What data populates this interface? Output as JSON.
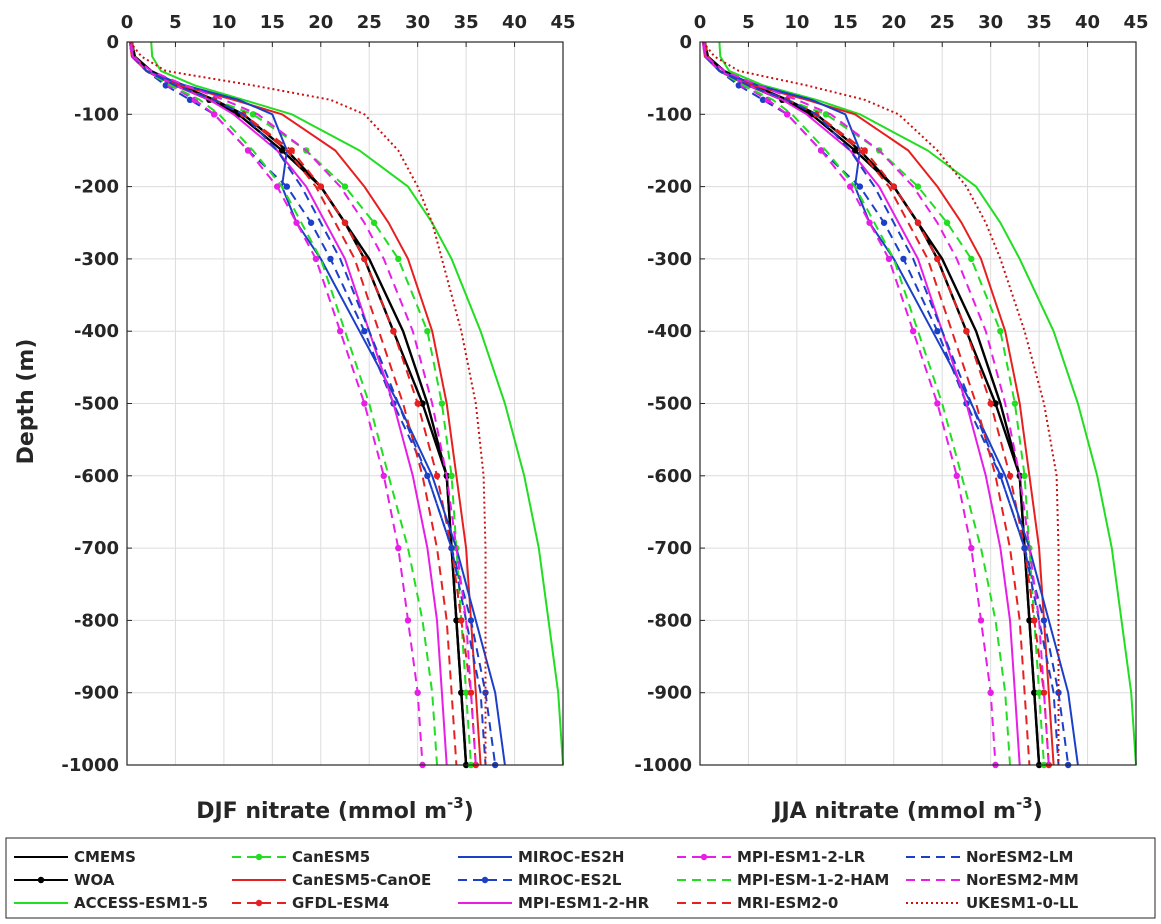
{
  "chart_data": [
    {
      "type": "line",
      "panel": "DJF",
      "xlabel": "DJF nitrate (mmol m",
      "xlabel_sup": "-3",
      "xlabel_end": ")",
      "ylabel": "Depth (m)",
      "xlim": [
        0,
        45
      ],
      "ylim": [
        -1000,
        0
      ],
      "xticks": [
        "0",
        "5",
        "10",
        "15",
        "20",
        "25",
        "30",
        "35",
        "40",
        "45"
      ],
      "yticks": [
        "0",
        "-100",
        "-200",
        "-300",
        "-400",
        "-500",
        "-600",
        "-700",
        "-800",
        "-900",
        "-1000"
      ],
      "grid": true,
      "depth": [
        0,
        -20,
        -40,
        -60,
        -80,
        -100,
        -150,
        -200,
        -250,
        -300,
        -400,
        -500,
        -600,
        -700,
        -800,
        -900,
        -1000
      ],
      "series": [
        {
          "name": "CMEMS",
          "color": "#000000",
          "style": "solid",
          "marker": false,
          "values": [
            0.5,
            0.8,
            2.5,
            5.5,
            9,
            12,
            16.5,
            20,
            22.5,
            25,
            28.5,
            31,
            33,
            33.5,
            34,
            34.5,
            35
          ]
        },
        {
          "name": "WOA",
          "color": "#000000",
          "style": "solid",
          "marker": true,
          "values": [
            0.5,
            0.8,
            2,
            5,
            8.5,
            11.5,
            16,
            20,
            22.5,
            24.5,
            27.5,
            30.5,
            33,
            33.5,
            34,
            34.5,
            35
          ]
        },
        {
          "name": "ACCESS-ESM1-5",
          "color": "#22dd22",
          "style": "solid",
          "marker": false,
          "values": [
            2.5,
            2.6,
            3.5,
            7,
            12,
            17,
            24,
            29,
            31.5,
            33.5,
            36.5,
            39,
            41,
            42.5,
            43.5,
            44.5,
            45
          ]
        },
        {
          "name": "CanESM5",
          "color": "#22dd22",
          "style": "dashed",
          "marker": true,
          "values": [
            0.5,
            0.8,
            2,
            5,
            9,
            13,
            18.5,
            22.5,
            25.5,
            28,
            31,
            32.5,
            33.5,
            34,
            34.5,
            35,
            35.5
          ]
        },
        {
          "name": "CanESM5-CanOE",
          "color": "#e62020",
          "style": "solid",
          "marker": false,
          "values": [
            0.3,
            0.5,
            2,
            5.5,
            11,
            16,
            21.5,
            24.5,
            27,
            29,
            31.5,
            33,
            34,
            35,
            35.5,
            36,
            36.5
          ]
        },
        {
          "name": "GFDL-ESM4",
          "color": "#e62020",
          "style": "dashed",
          "marker": true,
          "values": [
            0.5,
            0.8,
            2,
            5,
            9,
            12,
            17,
            20,
            22.5,
            24.5,
            27.5,
            30,
            32,
            33.5,
            34.5,
            35.5,
            36
          ]
        },
        {
          "name": "MIROC-ES2H",
          "color": "#1c3fc8",
          "style": "solid",
          "marker": false,
          "values": [
            0.4,
            0.6,
            2,
            6,
            11.5,
            15,
            16.5,
            16,
            17.5,
            20,
            24,
            28,
            31.5,
            34,
            36,
            38,
            39
          ]
        },
        {
          "name": "MIROC-ES2L",
          "color": "#1c3fc8",
          "style": "dashed",
          "marker": true,
          "values": [
            0.3,
            0.5,
            2,
            4,
            6.5,
            9,
            12.5,
            16.5,
            19,
            21,
            24.5,
            27.5,
            31,
            33.5,
            35.5,
            37,
            38
          ]
        },
        {
          "name": "MPI-ESM1-2-HR",
          "color": "#e61ee6",
          "style": "solid",
          "marker": false,
          "values": [
            0.4,
            0.6,
            2,
            5,
            8.5,
            11,
            15.5,
            18.5,
            20.5,
            22.5,
            25,
            27.5,
            29.5,
            31,
            32,
            32.5,
            33
          ]
        },
        {
          "name": "MPI-ESM1-2-LR",
          "color": "#e61ee6",
          "style": "dashed",
          "marker": true,
          "values": [
            0.3,
            0.5,
            2,
            4.5,
            7,
            9,
            12.5,
            15.5,
            17.5,
            19.5,
            22,
            24.5,
            26.5,
            28,
            29,
            30,
            30.5
          ]
        },
        {
          "name": "MPI-ESM-1-2-HAM",
          "color": "#22dd22",
          "style": "dashed",
          "marker": false,
          "values": [
            0.4,
            0.6,
            2,
            4.5,
            7.5,
            9.5,
            13,
            16,
            18,
            20,
            22.5,
            25,
            27,
            29,
            30.5,
            31.5,
            32
          ]
        },
        {
          "name": "MRI-ESM2-0",
          "color": "#e62020",
          "style": "dashed",
          "marker": false,
          "values": [
            0.4,
            0.6,
            2,
            5,
            9,
            12,
            16.5,
            19.5,
            21.5,
            23.5,
            26,
            28.5,
            30.5,
            32,
            33,
            33.5,
            34
          ]
        },
        {
          "name": "NorESM2-LM",
          "color": "#1c3fc8",
          "style": "dashed",
          "marker": false,
          "values": [
            0.4,
            0.6,
            2,
            5,
            9,
            12,
            15.5,
            18,
            20,
            22,
            25,
            28,
            31,
            33.5,
            35,
            36.5,
            37
          ]
        },
        {
          "name": "NorESM2-MM",
          "color": "#e61ee6",
          "style": "dashed",
          "marker": false,
          "values": [
            0.4,
            0.6,
            2.5,
            6,
            10,
            13.5,
            18.5,
            22,
            24.5,
            26.5,
            29.5,
            31.5,
            33,
            34,
            35,
            35.5,
            36
          ]
        },
        {
          "name": "UKESM1-0-LL",
          "color": "#cc1010",
          "style": "dotted",
          "marker": false,
          "values": [
            0.3,
            1.5,
            4,
            13,
            21,
            24.5,
            28,
            30,
            31.5,
            32.5,
            34.5,
            36,
            36.8,
            37,
            37,
            37,
            37
          ]
        }
      ]
    },
    {
      "type": "line",
      "panel": "JJA",
      "xlabel": "JJA nitrate (mmol m",
      "xlabel_sup": "-3",
      "xlabel_end": ")",
      "ylabel": "",
      "xlim": [
        0,
        45
      ],
      "ylim": [
        -1000,
        0
      ],
      "xticks": [
        "0",
        "5",
        "10",
        "15",
        "20",
        "25",
        "30",
        "35",
        "40",
        "45"
      ],
      "yticks": [
        "0",
        "-100",
        "-200",
        "-300",
        "-400",
        "-500",
        "-600",
        "-700",
        "-800",
        "-900",
        "-1000"
      ],
      "grid": true,
      "depth": [
        0,
        -20,
        -40,
        -60,
        -80,
        -100,
        -150,
        -200,
        -250,
        -300,
        -400,
        -500,
        -600,
        -700,
        -800,
        -900,
        -1000
      ],
      "series": [
        {
          "name": "CMEMS",
          "color": "#000000",
          "style": "solid",
          "marker": false,
          "values": [
            0.5,
            0.8,
            2.5,
            5.5,
            9,
            12,
            16.5,
            20,
            22.5,
            25,
            28.5,
            31,
            33,
            33.5,
            34,
            34.5,
            35
          ]
        },
        {
          "name": "WOA",
          "color": "#000000",
          "style": "solid",
          "marker": true,
          "values": [
            0.5,
            0.8,
            2,
            5,
            8.5,
            11.5,
            16,
            20,
            22.5,
            24.5,
            27.5,
            30.5,
            33,
            33.5,
            34,
            34.5,
            35
          ]
        },
        {
          "name": "ACCESS-ESM1-5",
          "color": "#22dd22",
          "style": "solid",
          "marker": false,
          "values": [
            2,
            2.1,
            3,
            6.5,
            12,
            16.5,
            23.5,
            28.5,
            31,
            33,
            36.5,
            39,
            41,
            42.5,
            43.5,
            44.5,
            45
          ]
        },
        {
          "name": "CanESM5",
          "color": "#22dd22",
          "style": "dashed",
          "marker": true,
          "values": [
            0.5,
            0.8,
            2,
            5,
            9,
            13,
            18.5,
            22.5,
            25.5,
            28,
            31,
            32.5,
            33.5,
            34,
            34.5,
            35,
            35.5
          ]
        },
        {
          "name": "CanESM5-CanOE",
          "color": "#e62020",
          "style": "solid",
          "marker": false,
          "values": [
            0.3,
            0.5,
            2,
            5.5,
            11,
            16,
            21.5,
            24.5,
            27,
            29,
            31.5,
            33,
            34,
            35,
            35.5,
            36,
            36.5
          ]
        },
        {
          "name": "GFDL-ESM4",
          "color": "#e62020",
          "style": "dashed",
          "marker": true,
          "values": [
            0.5,
            0.8,
            2,
            5,
            9,
            12,
            17,
            20,
            22.5,
            24.5,
            27.5,
            30,
            32,
            33.5,
            34.5,
            35.5,
            36
          ]
        },
        {
          "name": "MIROC-ES2H",
          "color": "#1c3fc8",
          "style": "solid",
          "marker": false,
          "values": [
            0.4,
            0.6,
            2,
            6,
            11.5,
            15,
            16.5,
            16,
            17.5,
            20,
            24,
            28,
            31.5,
            34,
            36,
            38,
            39
          ]
        },
        {
          "name": "MIROC-ES2L",
          "color": "#1c3fc8",
          "style": "dashed",
          "marker": true,
          "values": [
            0.3,
            0.5,
            2,
            4,
            6.5,
            9,
            12.5,
            16.5,
            19,
            21,
            24.5,
            27.5,
            31,
            33.5,
            35.5,
            37,
            38
          ]
        },
        {
          "name": "MPI-ESM1-2-HR",
          "color": "#e61ee6",
          "style": "solid",
          "marker": false,
          "values": [
            0.4,
            0.6,
            2,
            5,
            8.5,
            11,
            15.5,
            18.5,
            20.5,
            22.5,
            25,
            27.5,
            29.5,
            31,
            32,
            32.5,
            33
          ]
        },
        {
          "name": "MPI-ESM1-2-LR",
          "color": "#e61ee6",
          "style": "dashed",
          "marker": true,
          "values": [
            0.3,
            0.5,
            2,
            4.5,
            7,
            9,
            12.5,
            15.5,
            17.5,
            19.5,
            22,
            24.5,
            26.5,
            28,
            29,
            30,
            30.5
          ]
        },
        {
          "name": "MPI-ESM-1-2-HAM",
          "color": "#22dd22",
          "style": "dashed",
          "marker": false,
          "values": [
            0.4,
            0.6,
            2,
            4.5,
            7.5,
            9.5,
            13,
            16,
            18,
            20,
            22.5,
            25,
            27,
            29,
            30.5,
            31.5,
            32
          ]
        },
        {
          "name": "MRI-ESM2-0",
          "color": "#e62020",
          "style": "dashed",
          "marker": false,
          "values": [
            0.4,
            0.6,
            2,
            5,
            9,
            12,
            16.5,
            19.5,
            21.5,
            23.5,
            26,
            28.5,
            30.5,
            32,
            33,
            33.5,
            34
          ]
        },
        {
          "name": "NorESM2-LM",
          "color": "#1c3fc8",
          "style": "dashed",
          "marker": false,
          "values": [
            0.4,
            0.6,
            2,
            5,
            9,
            12,
            15.5,
            18,
            20,
            22,
            25,
            28,
            31,
            33.5,
            35,
            36.5,
            37
          ]
        },
        {
          "name": "NorESM2-MM",
          "color": "#e61ee6",
          "style": "dashed",
          "marker": false,
          "values": [
            0.4,
            0.6,
            2.5,
            6,
            10,
            13.5,
            18.5,
            22,
            24.5,
            26.5,
            29.5,
            31.5,
            33,
            34,
            35,
            35.5,
            36
          ]
        },
        {
          "name": "UKESM1-0-LL",
          "color": "#cc1010",
          "style": "dotted",
          "marker": false,
          "values": [
            0.3,
            1.5,
            4,
            11,
            17,
            20.5,
            24.5,
            27.5,
            29.5,
            31,
            33.5,
            35.5,
            36.8,
            37,
            37,
            37,
            37
          ]
        }
      ]
    }
  ],
  "legend": {
    "placement": "bottom",
    "columns": [
      [
        "CMEMS",
        "WOA",
        "ACCESS-ESM1-5"
      ],
      [
        "CanESM5",
        "CanESM5-CanOE",
        "GFDL-ESM4"
      ],
      [
        "MIROC-ES2H",
        "MIROC-ES2L",
        "MPI-ESM1-2-HR"
      ],
      [
        "MPI-ESM1-2-LR",
        "MPI-ESM-1-2-HAM",
        "MRI-ESM2-0"
      ],
      [
        "NorESM2-LM",
        "NorESM2-MM",
        "UKESM1-0-LL"
      ]
    ]
  }
}
